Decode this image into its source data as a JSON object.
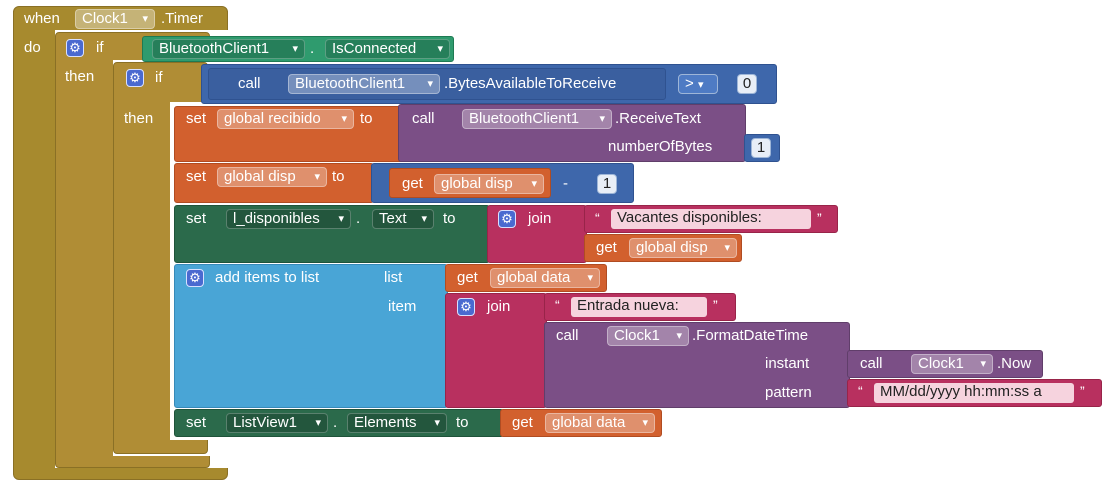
{
  "event": {
    "when": "when",
    "component": "Clock1",
    "event_name": ".Timer",
    "do": "do"
  },
  "outer_if": {
    "if": "if",
    "then": "then",
    "component": "BluetoothClient1",
    "dot": ".",
    "property": "IsConnected"
  },
  "inner_if": {
    "if": "if",
    "then": "then",
    "call": "call",
    "component": "BluetoothClient1",
    "method": ".BytesAvailableToReceive",
    "operator": ">",
    "value": "0"
  },
  "set_recibido": {
    "set": "set",
    "var": "global recibido",
    "to": "to",
    "call": "call",
    "component": "BluetoothClient1",
    "method": ".ReceiveText",
    "param": "numberOfBytes",
    "param_value": "1"
  },
  "set_disp": {
    "set": "set",
    "var": "global disp",
    "to": "to",
    "get": "get",
    "get_var": "global disp",
    "operator": "-",
    "value": "1"
  },
  "set_label": {
    "set": "set",
    "component": "l_disponibles",
    "dot": ".",
    "property": "Text",
    "to": "to",
    "join": "join",
    "text": "Vacantes disponibles:",
    "get": "get",
    "get_var": "global disp"
  },
  "add_items": {
    "label": "add items to list",
    "list": "list",
    "item": "item",
    "get": "get",
    "get_var": "global data",
    "join": "join",
    "text": "Entrada nueva:",
    "call": "call",
    "component": "Clock1",
    "method": ".FormatDateTime",
    "instant": "instant",
    "call2": "call",
    "component2": "Clock1",
    "method2": ".Now",
    "pattern": "pattern",
    "pattern_value": "MM/dd/yyyy hh:mm:ss a"
  },
  "set_listview": {
    "set": "set",
    "component": "ListView1",
    "dot": ".",
    "property": "Elements",
    "to": "to",
    "get": "get",
    "get_var": "global data"
  },
  "quote_open": "“",
  "quote_close": "”"
}
